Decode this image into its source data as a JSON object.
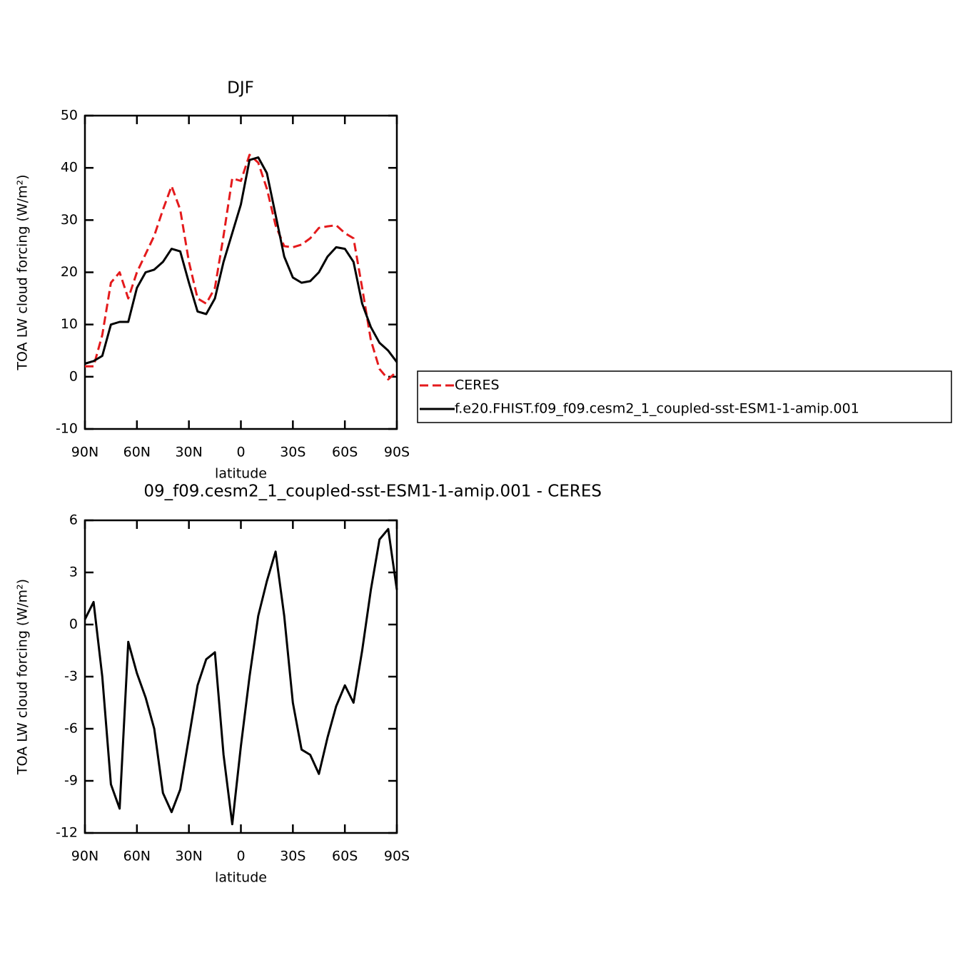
{
  "chart_data": [
    {
      "type": "line",
      "title": "DJF",
      "x_label": "latitude",
      "y_label": "TOA LW cloud forcing (W/m²)",
      "x": [
        90,
        85,
        80,
        75,
        70,
        65,
        60,
        55,
        50,
        45,
        40,
        35,
        30,
        25,
        20,
        15,
        10,
        5,
        0,
        -5,
        -10,
        -15,
        -20,
        -25,
        -30,
        -35,
        -40,
        -45,
        -50,
        -55,
        -60,
        -65,
        -70,
        -75,
        -80,
        -85,
        -90
      ],
      "xlim": [
        90,
        -90
      ],
      "xticks": [
        {
          "value": 90,
          "label": "90N"
        },
        {
          "value": 60,
          "label": "60N"
        },
        {
          "value": 30,
          "label": "30N"
        },
        0,
        {
          "value": -30,
          "label": "30S"
        },
        {
          "value": -60,
          "label": "60S"
        },
        {
          "value": -90,
          "label": "90S"
        }
      ],
      "ylim": [
        -10,
        50
      ],
      "yticks": [
        -10,
        0,
        10,
        20,
        30,
        40,
        50
      ],
      "series": [
        {
          "name": "CERES",
          "color": "#e41a1c",
          "style": "dashed",
          "values": [
            2,
            2,
            8,
            18,
            20,
            15,
            20,
            23.5,
            27,
            32,
            36.5,
            32,
            22,
            15,
            14,
            17,
            27,
            38,
            37.5,
            42.5,
            41,
            36,
            29,
            25,
            24.8,
            25.3,
            26.5,
            28.5,
            28.8,
            29,
            27.5,
            26.5,
            17,
            7,
            1.5,
            -0.5,
            1
          ]
        },
        {
          "name": "f.e20.FHIST.f09_f09.cesm2_1_coupled-sst-ESM1-1-amip.001",
          "color": "#000000",
          "style": "solid",
          "values": [
            2.5,
            3,
            4,
            10,
            10.5,
            10.5,
            17,
            20,
            20.5,
            22,
            24.5,
            24,
            18,
            12.5,
            12,
            15,
            22,
            27.5,
            33,
            41.5,
            42,
            39,
            31,
            23,
            19,
            18,
            18.3,
            20,
            23,
            24.8,
            24.5,
            22,
            14,
            9.5,
            6.5,
            5,
            2.8
          ]
        }
      ]
    },
    {
      "type": "line",
      "title": "09_f09.cesm2_1_coupled-sst-ESM1-1-amip.001 - CERES",
      "x_label": "latitude",
      "y_label": "TOA LW cloud forcing (W/m²)",
      "x": [
        90,
        85,
        80,
        75,
        70,
        65,
        60,
        55,
        50,
        45,
        40,
        35,
        30,
        25,
        20,
        15,
        10,
        5,
        0,
        -5,
        -10,
        -15,
        -20,
        -25,
        -30,
        -35,
        -40,
        -45,
        -50,
        -55,
        -60,
        -65,
        -70,
        -75,
        -80,
        -85,
        -90
      ],
      "xlim": [
        90,
        -90
      ],
      "xticks": [
        {
          "value": 90,
          "label": "90N"
        },
        {
          "value": 60,
          "label": "60N"
        },
        {
          "value": 30,
          "label": "30N"
        },
        0,
        {
          "value": -30,
          "label": "30S"
        },
        {
          "value": -60,
          "label": "60S"
        },
        {
          "value": -90,
          "label": "90S"
        }
      ],
      "ylim": [
        -12,
        6
      ],
      "yticks": [
        -12,
        -9,
        -6,
        -3,
        0,
        3,
        6
      ],
      "series": [
        {
          "color": "#000000",
          "style": "solid",
          "values": [
            0.3,
            1.3,
            -3,
            -9.2,
            -10.6,
            -1,
            -2.8,
            -4.2,
            -6,
            -9.7,
            -10.8,
            -9.5,
            -6.5,
            -3.5,
            -2,
            -1.6,
            -7.5,
            -11.5,
            -7,
            -3,
            0.5,
            2.5,
            4.2,
            0.5,
            -4.5,
            -7.2,
            -7.5,
            -8.6,
            -6.5,
            -4.7,
            -3.5,
            -4.5,
            -1.5,
            2,
            4.9,
            5.5,
            2
          ]
        }
      ]
    }
  ]
}
